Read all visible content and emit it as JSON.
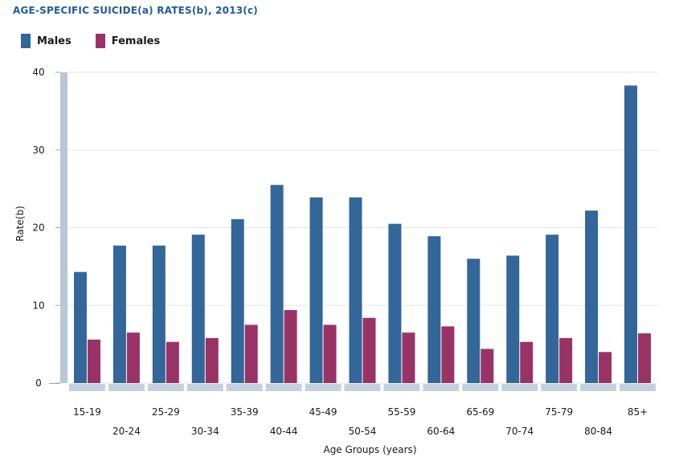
{
  "chart_data": {
    "type": "bar",
    "title": "AGE-SPECIFIC SUICIDE(a) RATES(b), 2013(c)",
    "xlabel": "Age Groups (years)",
    "ylabel": "Rate(b)",
    "ylim": [
      0,
      40
    ],
    "yticks": [
      "0",
      "10",
      "20",
      "30",
      "40"
    ],
    "grid": true,
    "legend_position": "top-left",
    "categories": [
      "15-19",
      "20-24",
      "25-29",
      "30-34",
      "35-39",
      "40-44",
      "45-49",
      "50-54",
      "55-59",
      "60-64",
      "65-69",
      "70-74",
      "75-79",
      "80-84",
      "85+"
    ],
    "series": [
      {
        "name": "Males",
        "color": "#336699",
        "values": [
          14.3,
          17.7,
          17.7,
          19.1,
          21.1,
          25.5,
          23.9,
          23.9,
          20.5,
          18.9,
          16.0,
          16.4,
          19.1,
          22.2,
          38.3
        ]
      },
      {
        "name": "Females",
        "color": "#993366",
        "values": [
          5.6,
          6.5,
          5.3,
          5.8,
          7.5,
          9.4,
          7.5,
          8.4,
          6.5,
          7.3,
          4.4,
          5.3,
          5.8,
          4.0,
          6.4
        ]
      }
    ]
  }
}
